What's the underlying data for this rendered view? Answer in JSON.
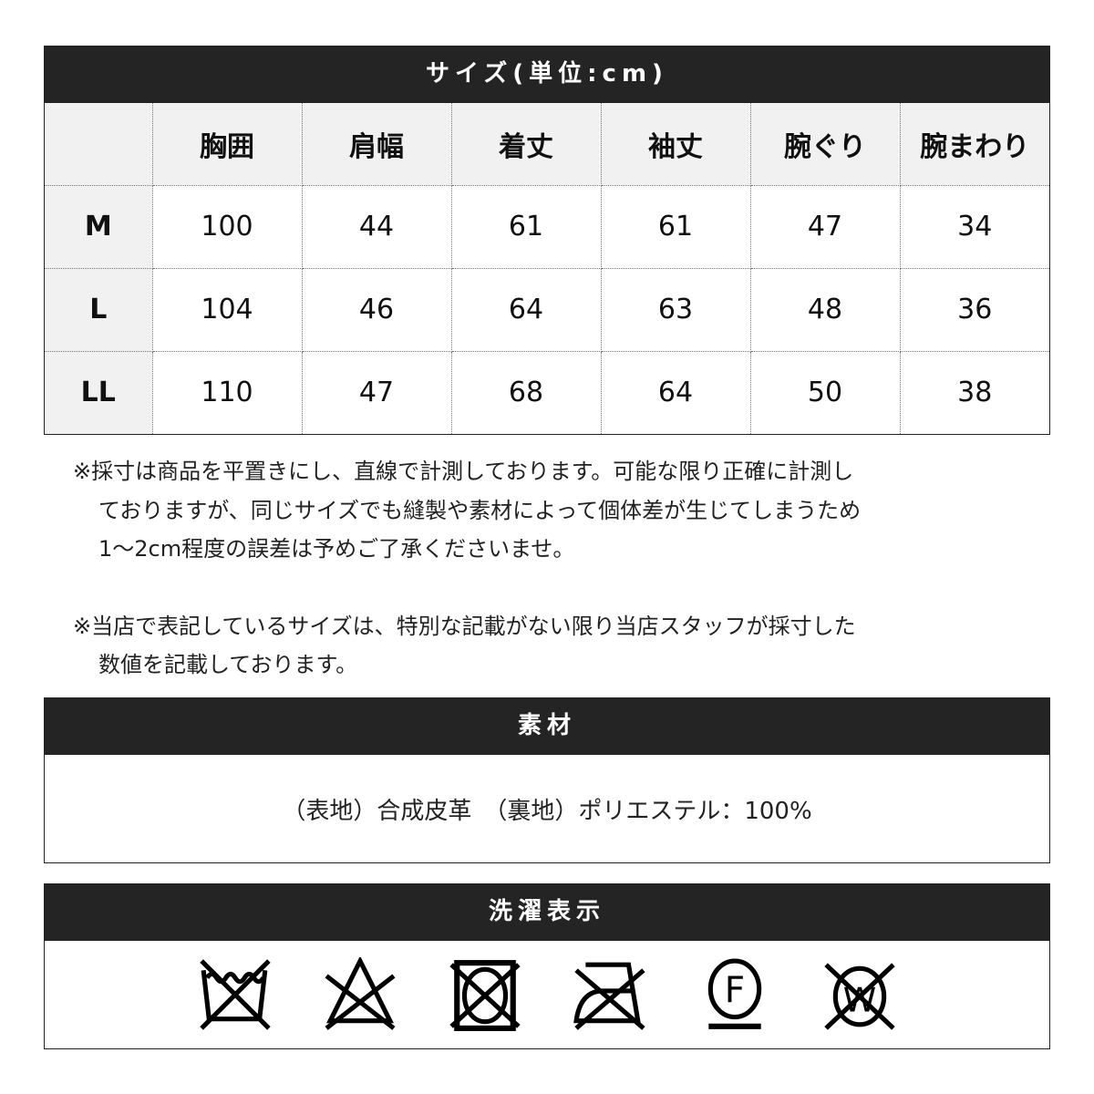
{
  "size_table": {
    "title": "サイズ(単位:cm)",
    "columns": [
      "",
      "胸囲",
      "肩幅",
      "着丈",
      "袖丈",
      "腕ぐり",
      "腕まわり"
    ],
    "rows": [
      {
        "size": "M",
        "values": [
          "100",
          "44",
          "61",
          "61",
          "47",
          "34"
        ]
      },
      {
        "size": "L",
        "values": [
          "104",
          "46",
          "64",
          "63",
          "48",
          "36"
        ]
      },
      {
        "size": "LL",
        "values": [
          "110",
          "47",
          "68",
          "64",
          "50",
          "38"
        ]
      }
    ]
  },
  "notes": [
    {
      "lines": [
        "※採寸は商品を平置きにし、直線で計測しております。可能な限り正確に計測し",
        "ておりますが、同じサイズでも縫製や素材によって個体差が生じてしまうため",
        "1〜2cm程度の誤差は予めご了承くださいませ。"
      ]
    },
    {
      "lines": [
        "※当店で表記しているサイズは、特別な記載がない限り当店スタッフが採寸した",
        "数値を記載しております。"
      ]
    }
  ],
  "material": {
    "title": "素材",
    "text": "（表地）合成皮革　（裏地）ポリエステル：100%"
  },
  "care": {
    "title": "洗濯表示",
    "icons": [
      "no-wash-icon",
      "no-bleach-icon",
      "no-tumble-dry-icon",
      "no-iron-icon",
      "dry-clean-f-icon",
      "no-wet-clean-icon"
    ],
    "icon_letters": [
      "F",
      "W"
    ]
  }
}
